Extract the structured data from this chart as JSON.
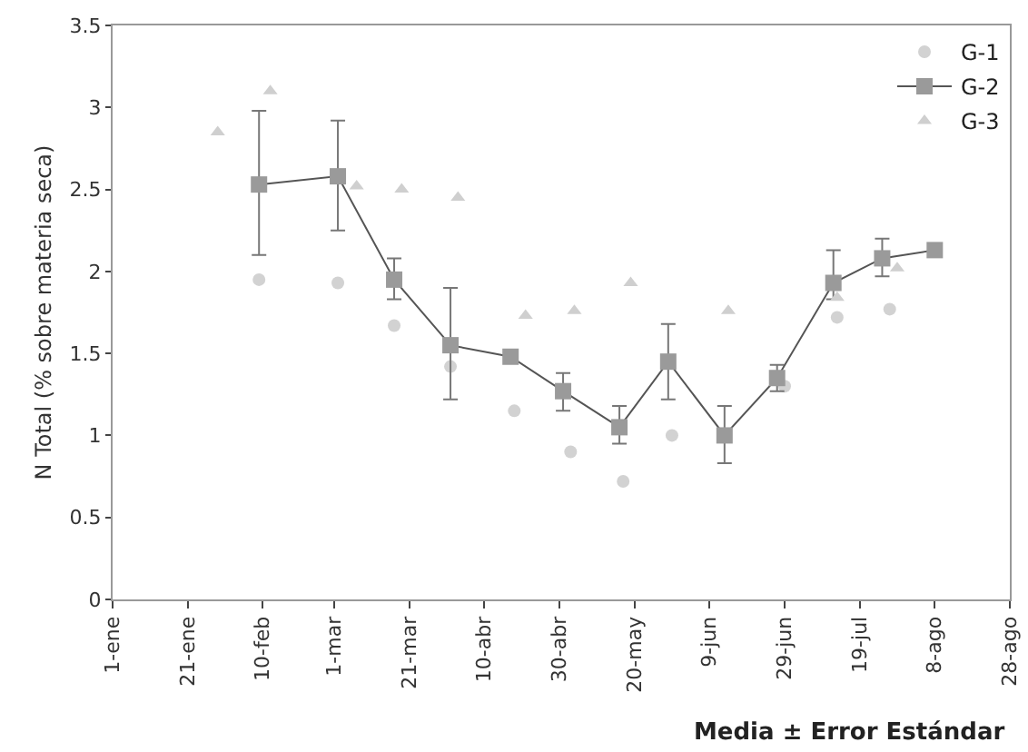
{
  "chart_data": {
    "type": "scatter",
    "ylabel": "N Total (% sobre materia seca)",
    "annotations": [
      "Media ± Error Estándar"
    ],
    "xlim": [
      "--01-01",
      "--08-28"
    ],
    "xticks": [
      {
        "value": "--01-01",
        "label": "1-ene"
      },
      {
        "value": "--01-21",
        "label": "21-ene"
      },
      {
        "value": "--02-10",
        "label": "10-feb"
      },
      {
        "value": "--03-01",
        "label": "1-mar"
      },
      {
        "value": "--03-21",
        "label": "21-mar"
      },
      {
        "value": "--04-10",
        "label": "10-abr"
      },
      {
        "value": "--04-30",
        "label": "30-abr"
      },
      {
        "value": "--05-20",
        "label": "20-may"
      },
      {
        "value": "--06-09",
        "label": "9-jun"
      },
      {
        "value": "--06-29",
        "label": "29-jun"
      },
      {
        "value": "--07-19",
        "label": "19-jul"
      },
      {
        "value": "--08-08",
        "label": "8-ago"
      },
      {
        "value": "--08-28",
        "label": "28-ago"
      }
    ],
    "ylim": [
      0,
      3.5
    ],
    "yticks": [
      0,
      0.5,
      1,
      1.5,
      2,
      2.5,
      3,
      3.5
    ],
    "grid": false,
    "legend": "top right",
    "series": [
      {
        "name": "G-1",
        "type": "scatter",
        "marker": "circle",
        "color": "#d2d2d2",
        "x": [
          "--02-09",
          "--03-02",
          "--03-17",
          "--04-01",
          "--04-18",
          "--05-03",
          "--05-17",
          "--05-30",
          "--06-29",
          "--07-13",
          "--07-27"
        ],
        "values": [
          1.95,
          1.93,
          1.67,
          1.42,
          1.15,
          0.9,
          0.72,
          1.0,
          1.3,
          1.72,
          1.77
        ]
      },
      {
        "name": "G-2",
        "type": "line",
        "marker": "square",
        "color": "#9a9a9a",
        "line_style": "solid",
        "x": [
          "--02-09",
          "--03-02",
          "--03-17",
          "--04-01",
          "--04-17",
          "--05-01",
          "--05-16",
          "--05-29",
          "--06-13",
          "--06-27",
          "--07-12",
          "--07-25",
          "--08-08"
        ],
        "values": [
          2.53,
          2.58,
          1.95,
          1.55,
          1.48,
          1.27,
          1.05,
          1.45,
          1.0,
          1.35,
          1.93,
          2.08,
          2.13
        ],
        "errors": [
          [
            2.1,
            2.98
          ],
          [
            2.25,
            2.92
          ],
          [
            1.83,
            2.08
          ],
          [
            1.22,
            1.9
          ],
          null,
          [
            1.15,
            1.38
          ],
          [
            0.95,
            1.18
          ],
          [
            1.22,
            1.68
          ],
          [
            0.83,
            1.18
          ],
          [
            1.27,
            1.43
          ],
          [
            1.83,
            2.13
          ],
          [
            1.97,
            2.2
          ],
          null
        ]
      },
      {
        "name": "G-3",
        "type": "scatter",
        "marker": "triangle",
        "color": "#cfcfcf",
        "x": [
          "--01-29",
          "--02-12",
          "--03-07",
          "--03-19",
          "--04-03",
          "--04-21",
          "--05-04",
          "--05-19",
          "--06-14",
          "--07-13",
          "--07-29"
        ],
        "values": [
          2.85,
          3.1,
          2.52,
          2.5,
          2.45,
          1.73,
          1.76,
          1.93,
          1.76,
          1.84,
          2.02
        ]
      }
    ]
  }
}
